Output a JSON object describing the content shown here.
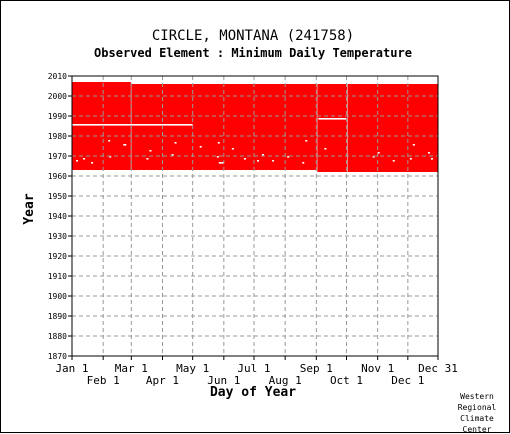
{
  "chart_data": {
    "type": "heatmap",
    "title": "CIRCLE, MONTANA   (241758)",
    "subtitle": "Observed Element : Minimum Daily Temperature",
    "xlabel": "Day of Year",
    "ylabel": "Year",
    "ylim": [
      1870,
      2010
    ],
    "xlim_day": [
      1,
      365
    ],
    "y_ticks": [
      1870,
      1880,
      1890,
      1900,
      1910,
      1920,
      1930,
      1940,
      1950,
      1960,
      1970,
      1980,
      1990,
      2000,
      2010
    ],
    "x_ticks_top_row": [
      {
        "label": "Jan 1",
        "day": 1
      },
      {
        "label": "Mar 1",
        "day": 60
      },
      {
        "label": "May 1",
        "day": 121
      },
      {
        "label": "Jul 1",
        "day": 182
      },
      {
        "label": "Sep 1",
        "day": 244
      },
      {
        "label": "Nov 1",
        "day": 305
      },
      {
        "label": "Dec 31",
        "day": 365
      }
    ],
    "x_ticks_bottom_row": [
      {
        "label": "Feb 1",
        "day": 32
      },
      {
        "label": "Apr 1",
        "day": 91
      },
      {
        "label": "Jun 1",
        "day": 152
      },
      {
        "label": "Aug 1",
        "day": 213
      },
      {
        "label": "Oct 1",
        "day": 274
      },
      {
        "label": "Dec 1",
        "day": 335
      }
    ],
    "grid": true,
    "fill_color": "#ff0000",
    "gap_color": "#ffffff",
    "observed_periods": [
      {
        "day_start": 1,
        "day_end": 59,
        "year_start": 1963,
        "year_end": 2006
      },
      {
        "day_start": 60,
        "day_end": 244,
        "year_start": 1963,
        "year_end": 2005
      },
      {
        "day_start": 245,
        "day_end": 274,
        "year_start": 1962,
        "year_end": 2005
      },
      {
        "day_start": 275,
        "day_end": 365,
        "year_start": 1962,
        "year_end": 2005
      }
    ],
    "missing_runs": [
      {
        "year": 1985,
        "day_start": 1,
        "day_end": 121
      },
      {
        "year": 1988,
        "day_start": 246,
        "day_end": 274
      }
    ],
    "missing_points": [
      {
        "day": 37,
        "year": 1977
      },
      {
        "day": 52,
        "year": 1975
      },
      {
        "day": 53,
        "year": 1975
      },
      {
        "day": 5,
        "year": 1967
      },
      {
        "day": 12,
        "year": 1968
      },
      {
        "day": 20,
        "year": 1966
      },
      {
        "day": 38,
        "year": 1969
      },
      {
        "day": 75,
        "year": 1968
      },
      {
        "day": 78,
        "year": 1972
      },
      {
        "day": 100,
        "year": 1970
      },
      {
        "day": 103,
        "year": 1976
      },
      {
        "day": 128,
        "year": 1974
      },
      {
        "day": 145,
        "year": 1969
      },
      {
        "day": 146,
        "year": 1976
      },
      {
        "day": 147,
        "year": 1966
      },
      {
        "day": 148,
        "year": 1966
      },
      {
        "day": 150,
        "year": 1966
      },
      {
        "day": 160,
        "year": 1973
      },
      {
        "day": 172,
        "year": 1968
      },
      {
        "day": 185,
        "year": 1967
      },
      {
        "day": 190,
        "year": 1970
      },
      {
        "day": 200,
        "year": 1967
      },
      {
        "day": 215,
        "year": 1969
      },
      {
        "day": 230,
        "year": 1966
      },
      {
        "day": 233,
        "year": 1977
      },
      {
        "day": 252,
        "year": 1973
      },
      {
        "day": 300,
        "year": 1969
      },
      {
        "day": 305,
        "year": 1971
      },
      {
        "day": 320,
        "year": 1967
      },
      {
        "day": 337,
        "year": 1968
      },
      {
        "day": 340,
        "year": 1975
      },
      {
        "day": 355,
        "year": 1971
      },
      {
        "day": 358,
        "year": 1968
      }
    ]
  },
  "credit": [
    "Western",
    "Regional",
    "Climate",
    "Center"
  ]
}
